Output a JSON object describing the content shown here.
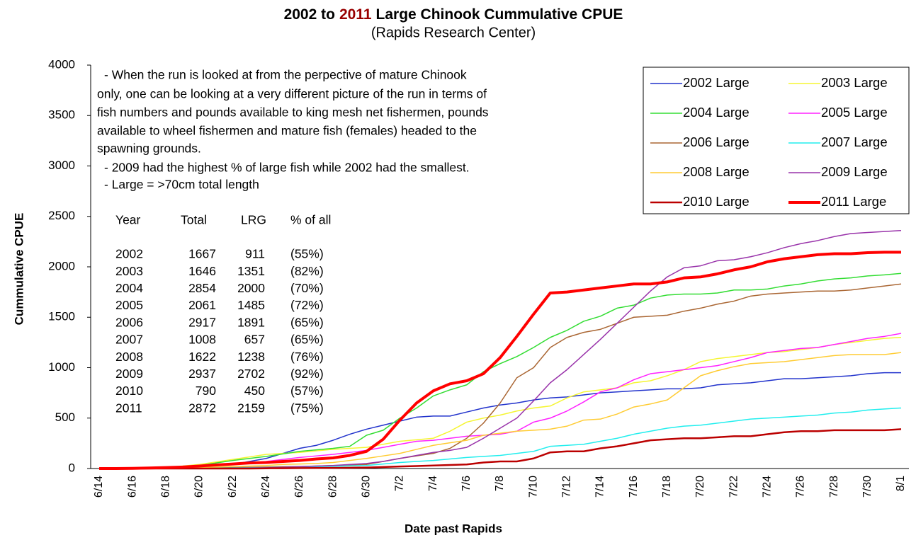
{
  "chart_data": {
    "type": "line",
    "title": [
      "2002 to",
      "2011",
      "Large Chinook Cummulative CPUE"
    ],
    "title_colors": [
      "#000000",
      "#990000",
      "#000000"
    ],
    "subtitle": "(Rapids Research Center)",
    "x_label": "Date past Rapids",
    "y_label": "Cummulative CPUE",
    "ylim": [
      0,
      4000
    ],
    "yticks": [
      0,
      500,
      1000,
      1500,
      2000,
      2500,
      3000,
      3500,
      4000
    ],
    "grid": false,
    "legend": "top-right",
    "categories": [
      "6/14",
      null,
      "6/16",
      null,
      "6/18",
      null,
      "6/20",
      null,
      "6/22",
      null,
      "6/24",
      null,
      "6/26",
      null,
      "6/28",
      null,
      "6/30",
      null,
      "7/2",
      null,
      "7/4",
      null,
      "7/6",
      null,
      "7/8",
      null,
      "7/10",
      null,
      "7/12",
      null,
      "7/14",
      null,
      "7/16",
      null,
      "7/18",
      null,
      "7/20",
      null,
      "7/22",
      null,
      "7/24",
      null,
      "7/26",
      null,
      "7/28",
      null,
      "7/30",
      null,
      "8/1"
    ],
    "series": [
      {
        "name": "2002 Large",
        "color": "#2233cc",
        "width": 1.5,
        "values": [
          0,
          0,
          0,
          2,
          5,
          10,
          20,
          30,
          40,
          70,
          100,
          150,
          200,
          230,
          280,
          340,
          390,
          430,
          470,
          510,
          520,
          520,
          560,
          600,
          630,
          650,
          680,
          700,
          710,
          730,
          750,
          760,
          770,
          780,
          790,
          790,
          800,
          830,
          840,
          850,
          870,
          890,
          890,
          900,
          910,
          920,
          940,
          950,
          950
        ]
      },
      {
        "name": "2003 Large",
        "color": "#f5f532",
        "width": 1.5,
        "values": [
          0,
          0,
          3,
          6,
          10,
          25,
          40,
          65,
          90,
          115,
          140,
          150,
          160,
          175,
          190,
          200,
          210,
          240,
          270,
          285,
          300,
          370,
          460,
          500,
          530,
          570,
          600,
          620,
          700,
          760,
          780,
          800,
          850,
          870,
          920,
          980,
          1060,
          1090,
          1110,
          1130,
          1150,
          1160,
          1180,
          1200,
          1230,
          1250,
          1270,
          1290,
          1300
        ]
      },
      {
        "name": "2004 Large",
        "color": "#33dd33",
        "width": 1.5,
        "values": [
          0,
          0,
          2,
          5,
          10,
          18,
          30,
          55,
          80,
          100,
          120,
          145,
          170,
          185,
          200,
          220,
          330,
          380,
          500,
          600,
          720,
          780,
          830,
          960,
          1040,
          1110,
          1200,
          1300,
          1370,
          1460,
          1510,
          1590,
          1620,
          1690,
          1720,
          1730,
          1730,
          1740,
          1770,
          1770,
          1780,
          1810,
          1830,
          1860,
          1880,
          1890,
          1910,
          1920,
          1935
        ]
      },
      {
        "name": "2005 Large",
        "color": "#ff22ff",
        "width": 1.5,
        "values": [
          0,
          0,
          0,
          2,
          5,
          10,
          20,
          30,
          40,
          55,
          70,
          90,
          110,
          125,
          140,
          160,
          180,
          210,
          240,
          270,
          280,
          300,
          320,
          330,
          340,
          370,
          460,
          500,
          570,
          660,
          760,
          800,
          880,
          940,
          960,
          980,
          1000,
          1020,
          1060,
          1100,
          1150,
          1170,
          1190,
          1200,
          1230,
          1260,
          1290,
          1310,
          1340
        ]
      },
      {
        "name": "2006 Large",
        "color": "#aa6633",
        "width": 1.5,
        "values": [
          0,
          0,
          0,
          0,
          2,
          4,
          6,
          8,
          10,
          12,
          15,
          18,
          20,
          25,
          30,
          35,
          40,
          70,
          100,
          125,
          150,
          200,
          300,
          450,
          650,
          900,
          1000,
          1200,
          1300,
          1350,
          1380,
          1440,
          1500,
          1510,
          1520,
          1560,
          1590,
          1630,
          1660,
          1710,
          1730,
          1740,
          1750,
          1760,
          1760,
          1770,
          1790,
          1810,
          1830
        ]
      },
      {
        "name": "2007 Large",
        "color": "#22eeee",
        "width": 1.5,
        "values": [
          0,
          0,
          0,
          0,
          0,
          0,
          2,
          4,
          6,
          8,
          10,
          12,
          15,
          18,
          22,
          26,
          30,
          45,
          60,
          70,
          80,
          95,
          110,
          120,
          130,
          150,
          170,
          220,
          230,
          240,
          270,
          300,
          340,
          370,
          400,
          420,
          430,
          450,
          470,
          490,
          500,
          510,
          520,
          530,
          550,
          560,
          580,
          590,
          600
        ]
      },
      {
        "name": "2008 Large",
        "color": "#ffcc33",
        "width": 1.5,
        "values": [
          0,
          0,
          0,
          0,
          2,
          5,
          10,
          15,
          20,
          25,
          30,
          40,
          45,
          50,
          60,
          80,
          100,
          125,
          150,
          190,
          230,
          255,
          280,
          330,
          350,
          370,
          380,
          390,
          420,
          480,
          490,
          540,
          610,
          640,
          680,
          800,
          920,
          970,
          1010,
          1040,
          1050,
          1060,
          1080,
          1100,
          1120,
          1130,
          1130,
          1130,
          1150
        ]
      },
      {
        "name": "2009 Large",
        "color": "#9933aa",
        "width": 1.5,
        "values": [
          0,
          0,
          0,
          0,
          0,
          0,
          0,
          0,
          2,
          5,
          8,
          12,
          18,
          25,
          30,
          40,
          50,
          70,
          100,
          130,
          160,
          180,
          210,
          300,
          400,
          500,
          670,
          850,
          980,
          1130,
          1280,
          1440,
          1600,
          1760,
          1900,
          1990,
          2010,
          2060,
          2070,
          2100,
          2140,
          2190,
          2230,
          2260,
          2300,
          2330,
          2340,
          2350,
          2360
        ]
      },
      {
        "name": "2010 Large",
        "color": "#bb0000",
        "width": 2.5,
        "values": [
          0,
          0,
          0,
          0,
          0,
          0,
          0,
          0,
          0,
          0,
          2,
          3,
          4,
          5,
          6,
          8,
          10,
          15,
          20,
          25,
          30,
          35,
          40,
          60,
          70,
          70,
          100,
          160,
          170,
          170,
          200,
          220,
          250,
          280,
          290,
          300,
          300,
          310,
          320,
          320,
          340,
          360,
          370,
          370,
          380,
          380,
          380,
          380,
          390
        ]
      },
      {
        "name": "2011 Large",
        "color": "#ff0000",
        "width": 4,
        "values": [
          0,
          0,
          2,
          5,
          10,
          15,
          25,
          35,
          45,
          55,
          60,
          70,
          80,
          95,
          105,
          130,
          170,
          290,
          480,
          650,
          770,
          840,
          870,
          940,
          1100,
          1310,
          1530,
          1740,
          1750,
          1770,
          1790,
          1810,
          1830,
          1830,
          1850,
          1890,
          1900,
          1930,
          1970,
          2000,
          2050,
          2080,
          2100,
          2120,
          2130,
          2130,
          2140,
          2145,
          2145
        ]
      }
    ],
    "annotation": [
      "- When the run is looked at from the perpective of mature Chinook",
      "only, one can be looking at a very different picture of the run in terms of",
      "fish numbers and pounds available to king mesh net fishermen, pounds",
      "available to wheel fishermen and mature fish (females) headed to the",
      "spawning grounds.",
      "- 2009 had the highest % of large fish while 2002 had the smallest.",
      "- Large = >70cm total length"
    ],
    "table": {
      "header": [
        "Year",
        "Total",
        "LRG",
        "% of all"
      ],
      "rows": [
        [
          2002,
          1667,
          911,
          "(55%)"
        ],
        [
          2003,
          1646,
          1351,
          "(82%)"
        ],
        [
          2004,
          2854,
          2000,
          "(70%)"
        ],
        [
          2005,
          2061,
          1485,
          "(72%)"
        ],
        [
          2006,
          2917,
          1891,
          "(65%)"
        ],
        [
          2007,
          1008,
          657,
          "(65%)"
        ],
        [
          2008,
          1622,
          1238,
          "(76%)"
        ],
        [
          2009,
          2937,
          2702,
          "(92%)"
        ],
        [
          2010,
          790,
          450,
          "(57%)"
        ],
        [
          2011,
          2872,
          2159,
          "(75%)"
        ]
      ]
    }
  }
}
